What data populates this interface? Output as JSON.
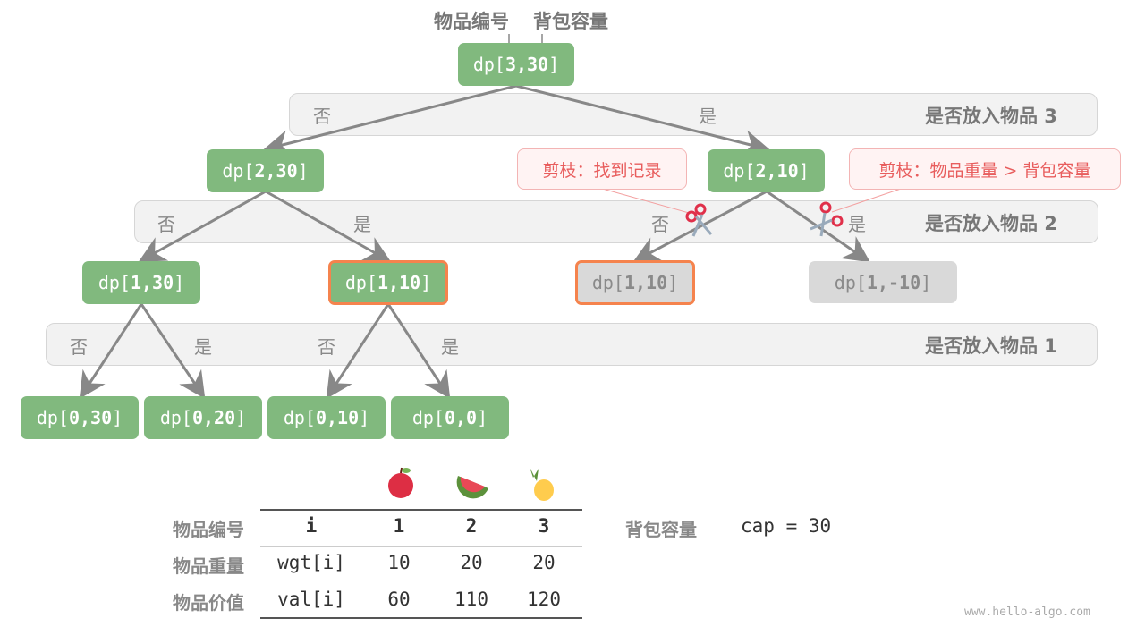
{
  "header": {
    "item_label": "物品编号",
    "capacity_label": "背包容量"
  },
  "bands": [
    {
      "label": "是否放入物品 3"
    },
    {
      "label": "是否放入物品 2"
    },
    {
      "label": "是否放入物品 1"
    }
  ],
  "branch": {
    "no": "否",
    "yes": "是"
  },
  "nodes": {
    "root": {
      "prefix": "dp[",
      "args": "3,30",
      "suffix": "]"
    },
    "n2_30": {
      "prefix": "dp[",
      "args": "2,30",
      "suffix": "]"
    },
    "n2_10": {
      "prefix": "dp[",
      "args": "2,10",
      "suffix": "]"
    },
    "n1_30": {
      "prefix": "dp[",
      "args": "1,30",
      "suffix": "]"
    },
    "n1_10a": {
      "prefix": "dp[",
      "args": "1,10",
      "suffix": "]"
    },
    "n1_10b": {
      "prefix": "dp[",
      "args": "1,10",
      "suffix": "]"
    },
    "n1_m10": {
      "prefix": "dp[",
      "args": "1,-10",
      "suffix": "]"
    },
    "l0_30": {
      "prefix": "dp[",
      "args": "0,30",
      "suffix": "]"
    },
    "l0_20": {
      "prefix": "dp[",
      "args": "0,20",
      "suffix": "]"
    },
    "l0_10": {
      "prefix": "dp[",
      "args": "0,10",
      "suffix": "]"
    },
    "l0_0": {
      "prefix": "dp[",
      "args": "0,0",
      "suffix": "]"
    }
  },
  "callouts": {
    "memo": "剪枝：找到记录",
    "overweight": "剪枝：物品重量 > 背包容量"
  },
  "table": {
    "row_labels": [
      "物品编号",
      "物品重量",
      "物品价值"
    ],
    "header": [
      "i",
      "1",
      "2",
      "3"
    ],
    "wgt": [
      "wgt[i]",
      "10",
      "20",
      "20"
    ],
    "val": [
      "val[i]",
      "60",
      "110",
      "120"
    ],
    "fruits": [
      "apple-icon",
      "watermelon-icon",
      "pineapple-icon"
    ]
  },
  "capacity": {
    "label": "背包容量",
    "value": "cap = 30"
  },
  "watermark": "www.hello-algo.com",
  "colors": {
    "node": "#81b97e",
    "pruned": "#d9d9d9",
    "highlight": "#f5834d",
    "callout": "#e85d5d"
  }
}
